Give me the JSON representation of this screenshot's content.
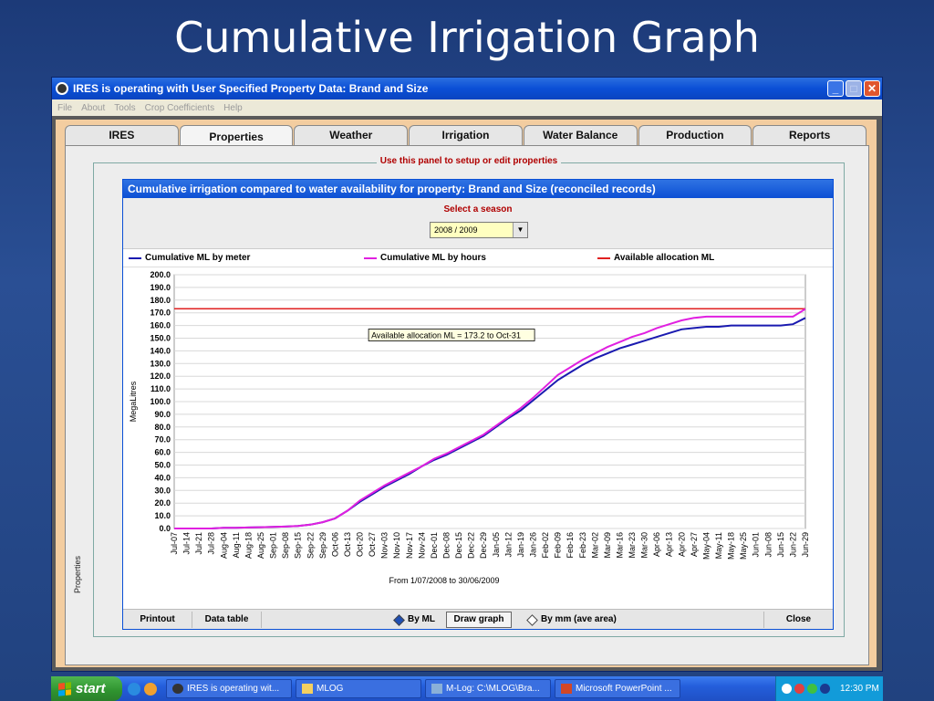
{
  "slide": {
    "title": "Cumulative Irrigation Graph"
  },
  "window": {
    "title": "IRES is operating with User Specified Property Data: Brand and Size",
    "menu": [
      "File",
      "About",
      "Tools",
      "Crop Coefficients",
      "Help"
    ]
  },
  "tabs": [
    {
      "label": "IRES"
    },
    {
      "label": "Properties"
    },
    {
      "label": "Weather"
    },
    {
      "label": "Irrigation"
    },
    {
      "label": "Water Balance"
    },
    {
      "label": "Production"
    },
    {
      "label": "Reports"
    }
  ],
  "active_tab": "Properties",
  "panel": {
    "legend": "Use this panel to setup or edit properties",
    "side_label": "Properties"
  },
  "dialog": {
    "title": "Cumulative irrigation compared to water availability for property: Brand and Size (reconciled records)",
    "season_label": "Select a season",
    "season_value": "2008 / 2009",
    "buttons": {
      "printout": "Printout",
      "data_table": "Data table",
      "by_ml": "By ML",
      "draw_graph": "Draw graph",
      "by_mm": "By mm (ave area)",
      "close": "Close"
    }
  },
  "colors": {
    "meter": "#1a1ab0",
    "hours": "#e020e0",
    "allocation": "#e02020"
  },
  "chart_data": {
    "type": "line",
    "ylabel": "MegaLitres",
    "xlabel": "From 1/07/2008 to 30/06/2009",
    "ylim": [
      0,
      200
    ],
    "yticks": [
      0,
      10,
      20,
      30,
      40,
      50,
      60,
      70,
      80,
      90,
      100,
      110,
      120,
      130,
      140,
      150,
      160,
      170,
      180,
      190,
      200
    ],
    "ytick_labels": [
      "0.0",
      "10.0",
      "20.0",
      "30.0",
      "40.0",
      "50.0",
      "60.0",
      "70.0",
      "80.0",
      "90.0",
      "100.0",
      "110.0",
      "120.0",
      "130.0",
      "140.0",
      "150.0",
      "160.0",
      "170.0",
      "180.0",
      "190.0",
      "200.0"
    ],
    "categories": [
      "Jul-07",
      "Jul-14",
      "Jul-21",
      "Jul-28",
      "Aug-04",
      "Aug-11",
      "Aug-18",
      "Aug-25",
      "Sep-01",
      "Sep-08",
      "Sep-15",
      "Sep-22",
      "Sep-29",
      "Oct-06",
      "Oct-13",
      "Oct-20",
      "Oct-27",
      "Nov-03",
      "Nov-10",
      "Nov-17",
      "Nov-24",
      "Dec-01",
      "Dec-08",
      "Dec-15",
      "Dec-22",
      "Dec-29",
      "Jan-05",
      "Jan-12",
      "Jan-19",
      "Jan-26",
      "Feb-02",
      "Feb-09",
      "Feb-16",
      "Feb-23",
      "Mar-02",
      "Mar-09",
      "Mar-16",
      "Mar-23",
      "Mar-30",
      "Apr-06",
      "Apr-13",
      "Apr-20",
      "Apr-27",
      "May-04",
      "May-11",
      "May-18",
      "May-25",
      "Jun-01",
      "Jun-08",
      "Jun-15",
      "Jun-22",
      "Jun-29"
    ],
    "series": [
      {
        "name": "Cumulative ML by meter",
        "values": [
          0,
          0,
          0,
          0,
          0.5,
          0.5,
          0.8,
          1,
          1.2,
          1.5,
          2,
          3,
          5,
          8,
          14,
          21,
          27,
          33,
          38,
          43,
          49,
          54,
          58,
          63,
          68,
          73,
          80,
          87,
          93,
          101,
          109,
          117,
          123,
          129,
          134,
          138,
          142,
          145,
          148,
          151,
          154,
          157,
          158,
          159,
          159,
          160,
          160,
          160,
          160,
          160,
          161,
          166
        ]
      },
      {
        "name": "Cumulative ML by hours",
        "values": [
          0,
          0,
          0,
          0,
          0.5,
          0.5,
          0.8,
          1,
          1.2,
          1.5,
          2,
          3,
          5,
          8,
          14,
          22,
          28,
          34,
          39,
          44,
          49,
          55,
          59,
          64,
          69,
          74,
          81,
          88,
          95,
          103,
          112,
          121,
          127,
          133,
          138,
          143,
          147,
          151,
          154,
          158,
          161,
          164,
          166,
          167,
          167,
          167,
          167,
          167,
          167,
          167,
          167,
          173
        ]
      },
      {
        "name": "Available allocation ML",
        "values": [
          173.2,
          173.2,
          173.2,
          173.2,
          173.2,
          173.2,
          173.2,
          173.2,
          173.2,
          173.2,
          173.2,
          173.2,
          173.2,
          173.2,
          173.2,
          173.2,
          173.2,
          173.2,
          173.2,
          173.2,
          173.2,
          173.2,
          173.2,
          173.2,
          173.2,
          173.2,
          173.2,
          173.2,
          173.2,
          173.2,
          173.2,
          173.2,
          173.2,
          173.2,
          173.2,
          173.2,
          173.2,
          173.2,
          173.2,
          173.2,
          173.2,
          173.2,
          173.2,
          173.2,
          173.2,
          173.2,
          173.2,
          173.2,
          173.2,
          173.2,
          173.2,
          173.2
        ]
      }
    ],
    "annotation": "Available allocation ML = 173.2 to Oct-31"
  },
  "taskbar": {
    "start_label": "start",
    "tasks": [
      "IRES is operating wit...",
      "MLOG",
      "M-Log: C:\\MLOG\\Bra...",
      "Microsoft PowerPoint ..."
    ],
    "clock": "12:30 PM"
  }
}
